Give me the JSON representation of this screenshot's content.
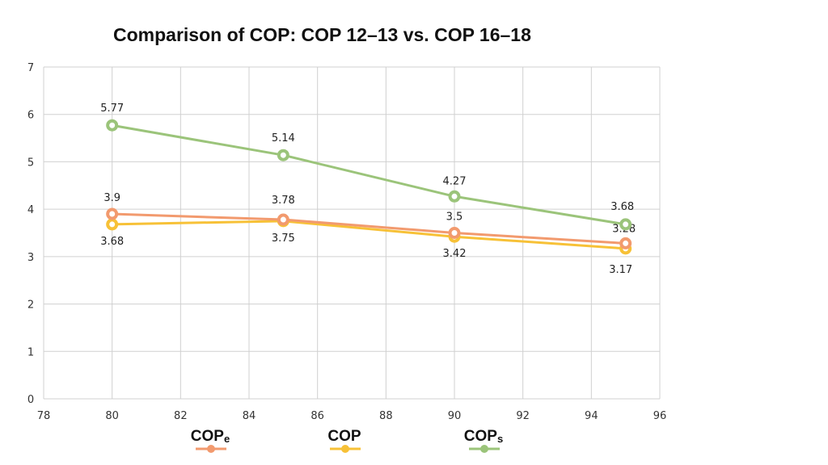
{
  "chart_data": {
    "type": "line",
    "title": "Comparison of COP: COP 12–13 vs. COP 16–18",
    "xlabel": "",
    "ylabel": "",
    "xlim": [
      78,
      96
    ],
    "ylim": [
      0,
      7
    ],
    "xticks": [
      78,
      80,
      82,
      84,
      86,
      88,
      90,
      92,
      94,
      96
    ],
    "yticks": [
      0,
      1,
      2,
      3,
      4,
      5,
      6,
      7
    ],
    "grid": true,
    "legend_position": "bottom",
    "x": [
      80,
      85,
      90,
      95
    ],
    "series": [
      {
        "name": "COPe",
        "legend_main": "COP",
        "legend_sub": "e",
        "color": "#f29a6e",
        "values": [
          3.9,
          3.78,
          3.5,
          3.28
        ],
        "labels": [
          "3.9",
          "3.78",
          "3.5",
          "3.28"
        ]
      },
      {
        "name": "COP",
        "legend_main": "COP",
        "legend_sub": "",
        "color": "#f7c137",
        "values": [
          3.68,
          3.75,
          3.42,
          3.17
        ],
        "labels": [
          "3.68",
          "3.75",
          "3.42",
          "3.17"
        ]
      },
      {
        "name": "COPs",
        "legend_main": "COP",
        "legend_sub": "s",
        "color": "#9bc47a",
        "values": [
          5.77,
          5.14,
          4.27,
          3.68
        ],
        "labels": [
          "5.77",
          "5.14",
          "4.27",
          "3.68"
        ]
      }
    ]
  }
}
